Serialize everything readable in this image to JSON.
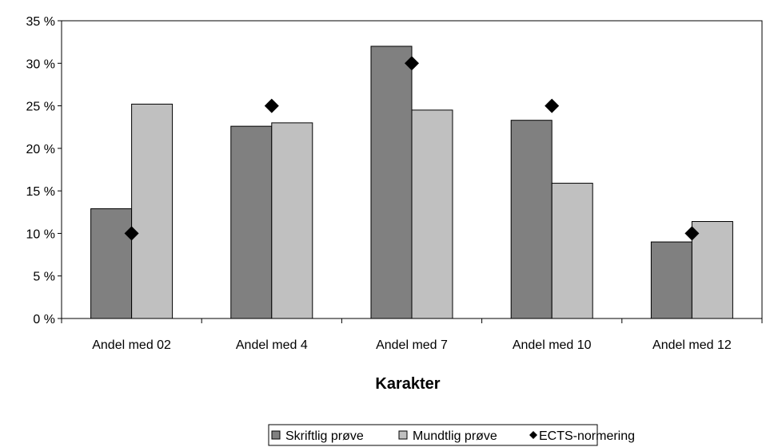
{
  "chart_data": {
    "type": "bar",
    "title": "",
    "xlabel": "Karakter",
    "ylabel": "",
    "ylim": [
      0,
      35
    ],
    "yticks": [
      "0 %",
      "5 %",
      "10 %",
      "15 %",
      "20 %",
      "25 %",
      "30 %",
      "35 %"
    ],
    "ytick_values": [
      0,
      5,
      10,
      15,
      20,
      25,
      30,
      35
    ],
    "categories": [
      "Andel med 02",
      "Andel med 4",
      "Andel med 7",
      "Andel med 10",
      "Andel med 12"
    ],
    "series": [
      {
        "name": "Skriftlig prøve",
        "kind": "bar",
        "color": "#808080",
        "values": [
          12.9,
          22.6,
          32.0,
          23.3,
          9.0
        ]
      },
      {
        "name": "Mundtlig prøve",
        "kind": "bar",
        "color": "#c0c0c0",
        "values": [
          25.2,
          23.0,
          24.5,
          15.9,
          11.4
        ]
      },
      {
        "name": "ECTS-normering",
        "kind": "marker",
        "color": "#000000",
        "values": [
          10,
          25,
          30,
          25,
          10
        ]
      }
    ],
    "grid": false,
    "legend_position": "bottom"
  }
}
